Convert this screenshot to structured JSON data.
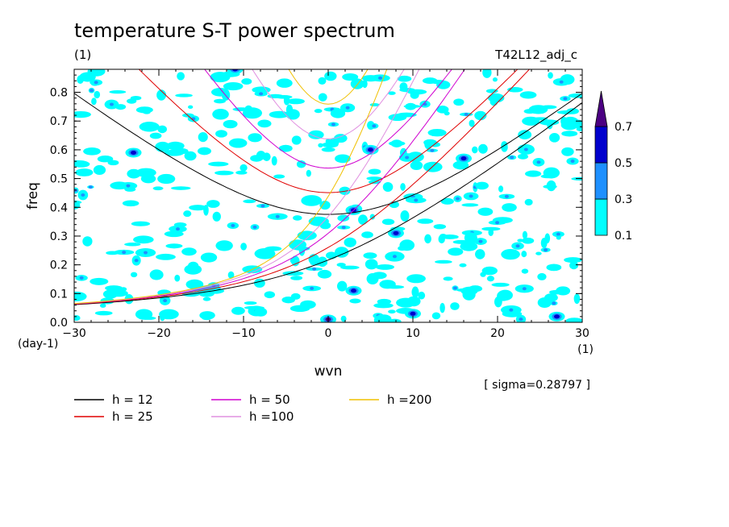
{
  "chart_data": {
    "type": "contour",
    "title": "temperature S-T power spectrum",
    "title_unit": "(1)",
    "run_label": "T42L12_adj_c",
    "xlabel": "wvn",
    "x_unit": "(1)",
    "ylabel": "freq",
    "y_unit": "(day-1)",
    "xlim": [
      -30,
      30
    ],
    "ylim": [
      0,
      0.88
    ],
    "x_ticks": [
      -30,
      -20,
      -10,
      0,
      10,
      20,
      30
    ],
    "y_ticks": [
      0.0,
      0.1,
      0.2,
      0.3,
      0.4,
      0.5,
      0.6,
      0.7,
      0.8
    ],
    "x_tick_labels": [
      "-30",
      "-20",
      "-10",
      "0",
      "10",
      "20",
      "30"
    ],
    "y_tick_labels": [
      "0.0",
      "0.1",
      "0.2",
      "0.3",
      "0.4",
      "0.5",
      "0.6",
      "0.7",
      "0.8"
    ],
    "sigma_note": "[ sigma=0.28797 ]",
    "colorbar": {
      "levels": [
        "0.1",
        "0.3",
        "0.5",
        "0.7"
      ],
      "colors": [
        "#00ffff",
        "#1e90ff",
        "#0000cd",
        "#4b0082"
      ]
    },
    "field_note": "noisy normalized power; patches of values above 0.1, with the strongest cells near wvn 0, freq 0.0",
    "hot_spots": [
      {
        "x": 0,
        "y": 0.01,
        "level": "0.7"
      },
      {
        "x": 3,
        "y": 0.39,
        "level": "0.5"
      },
      {
        "x": 10,
        "y": 0.03,
        "level": "0.5"
      },
      {
        "x": -23,
        "y": 0.59,
        "level": "0.5"
      },
      {
        "x": 3,
        "y": 0.11,
        "level": "0.5"
      },
      {
        "x": 8,
        "y": 0.31,
        "level": "0.5"
      },
      {
        "x": -11,
        "y": 0.88,
        "level": "0.5"
      },
      {
        "x": 16,
        "y": 0.57,
        "level": "0.5"
      },
      {
        "x": 5,
        "y": 0.6,
        "level": "0.5"
      },
      {
        "x": 27,
        "y": 0.02,
        "level": "0.5"
      }
    ],
    "dispersion_curves": [
      {
        "label": "h = 12",
        "h": 12,
        "color": "#000000"
      },
      {
        "label": "h = 25",
        "h": 25,
        "color": "#e00000"
      },
      {
        "label": "h = 50",
        "h": 50,
        "color": "#d000d0"
      },
      {
        "label": "h =100",
        "h": 100,
        "color": "#e090e0"
      },
      {
        "label": "h =200",
        "h": 200,
        "color": "#f0c000"
      }
    ]
  }
}
